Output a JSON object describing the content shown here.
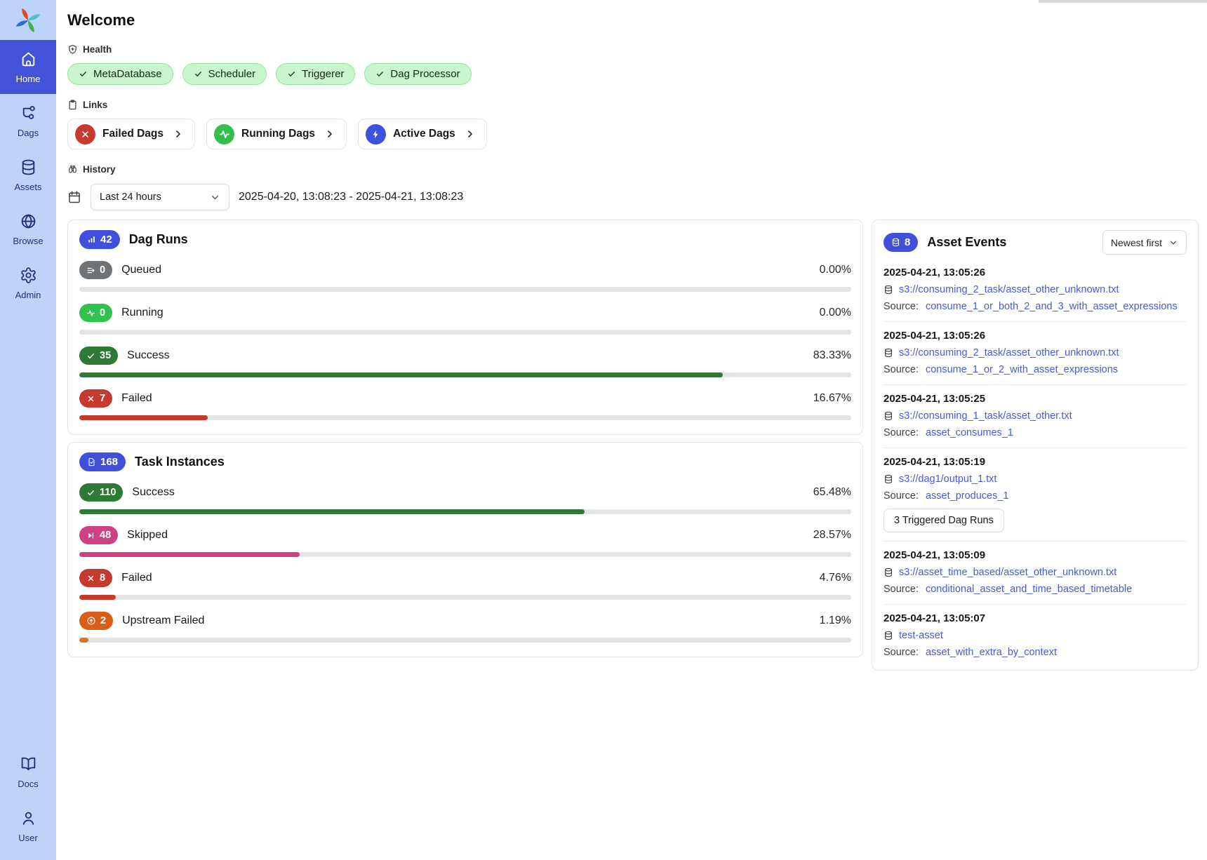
{
  "colors": {
    "accent_blue": "#4150db",
    "sidebar_bg": "#bed3f8",
    "sidebar_active": "#4353d9",
    "health_badge_bg": "#c9f6cd",
    "health_badge_border": "#92e59c",
    "queued_gray": "#6f7376",
    "running_green": "#2fc24d",
    "success_green": "#2c7a33",
    "failed_red": "#c43a2c",
    "skipped_pink": "#ce4283",
    "upstream_failed_orange": "#d95f18",
    "link_blue": "#4a5ad2",
    "bar_track": "#e3e4e6"
  },
  "icons": {
    "logo": "airflow-pinwheel-icon",
    "sidebar": [
      "home-icon",
      "dags-icon",
      "assets-icon",
      "browse-icon",
      "admin-icon",
      "docs-icon",
      "user-icon"
    ],
    "sections": [
      "shield-icon",
      "clipboard-icon",
      "binoculars-icon",
      "calendar-icon"
    ],
    "stats": [
      "bar-chart-icon",
      "file-check-icon",
      "database-icon",
      "queued-list-icon",
      "activity-icon",
      "check-icon",
      "x-icon",
      "skip-icon",
      "arrow-up-circle-icon"
    ],
    "misc": [
      "chevron-right-icon",
      "chevron-down-icon",
      "bolt-icon"
    ]
  },
  "sidebar": {
    "items": [
      {
        "label": "Home",
        "active": true
      },
      {
        "label": "Dags",
        "active": false
      },
      {
        "label": "Assets",
        "active": false
      },
      {
        "label": "Browse",
        "active": false
      },
      {
        "label": "Admin",
        "active": false
      }
    ],
    "bottom_items": [
      {
        "label": "Docs"
      },
      {
        "label": "User"
      }
    ]
  },
  "header": {
    "title": "Welcome"
  },
  "health": {
    "label": "Health",
    "badges": [
      {
        "label": "MetaDatabase"
      },
      {
        "label": "Scheduler"
      },
      {
        "label": "Triggerer"
      },
      {
        "label": "Dag Processor"
      }
    ]
  },
  "links": {
    "label": "Links",
    "buttons": [
      {
        "label": "Failed Dags",
        "icon": "x-circle-icon"
      },
      {
        "label": "Running Dags",
        "icon": "activity-circle-icon"
      },
      {
        "label": "Active Dags",
        "icon": "bolt-circle-icon"
      }
    ]
  },
  "history": {
    "label": "History",
    "range_select": "Last 24 hours",
    "range_text": "2025-04-20, 13:08:23 - 2025-04-21, 13:08:23"
  },
  "dag_runs": {
    "title": "Dag Runs",
    "total": "42",
    "stats": [
      {
        "label": "Queued",
        "count": "0",
        "percent": "0.00%",
        "status": "queued"
      },
      {
        "label": "Running",
        "count": "0",
        "percent": "0.00%",
        "status": "running"
      },
      {
        "label": "Success",
        "count": "35",
        "percent": "83.33%",
        "status": "success"
      },
      {
        "label": "Failed",
        "count": "7",
        "percent": "16.67%",
        "status": "failed"
      }
    ]
  },
  "task_instances": {
    "title": "Task Instances",
    "total": "168",
    "stats": [
      {
        "label": "Success",
        "count": "110",
        "percent": "65.48%",
        "status": "success"
      },
      {
        "label": "Skipped",
        "count": "48",
        "percent": "28.57%",
        "status": "skipped"
      },
      {
        "label": "Failed",
        "count": "8",
        "percent": "4.76%",
        "status": "failed"
      },
      {
        "label": "Upstream Failed",
        "count": "2",
        "percent": "1.19%",
        "status": "upstream_failed"
      }
    ]
  },
  "asset_events": {
    "title": "Asset Events",
    "total": "8",
    "sort": "Newest first",
    "source_label": "Source:",
    "events": [
      {
        "timestamp": "2025-04-21, 13:05:26",
        "asset": "s3://consuming_2_task/asset_other_unknown.txt",
        "source": "consume_1_or_both_2_and_3_with_asset_expressions"
      },
      {
        "timestamp": "2025-04-21, 13:05:26",
        "asset": "s3://consuming_2_task/asset_other_unknown.txt",
        "source": "consume_1_or_2_with_asset_expressions"
      },
      {
        "timestamp": "2025-04-21, 13:05:25",
        "asset": "s3://consuming_1_task/asset_other.txt",
        "source": "asset_consumes_1"
      },
      {
        "timestamp": "2025-04-21, 13:05:19",
        "asset": "s3://dag1/output_1.txt",
        "source": "asset_produces_1",
        "triggered_button": "3 Triggered Dag Runs"
      },
      {
        "timestamp": "2025-04-21, 13:05:09",
        "asset": "s3://asset_time_based/asset_other_unknown.txt",
        "source": "conditional_asset_and_time_based_timetable"
      },
      {
        "timestamp": "2025-04-21, 13:05:07",
        "asset": "test-asset",
        "source": "asset_with_extra_by_context"
      }
    ]
  }
}
